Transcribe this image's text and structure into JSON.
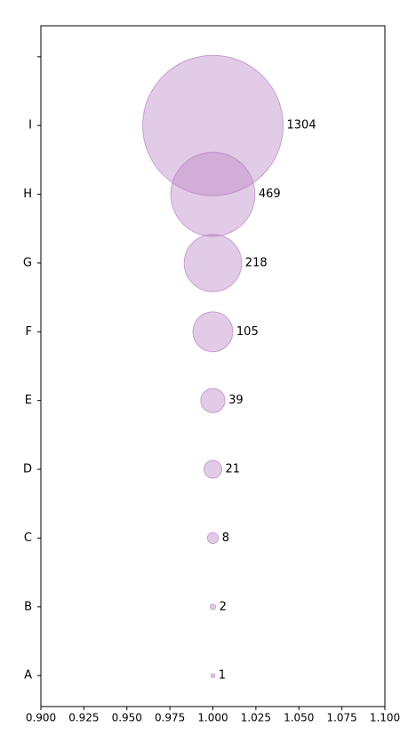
{
  "chart_data": {
    "type": "bubble",
    "yticks": [
      "A",
      "B",
      "C",
      "D",
      "E",
      "F",
      "G",
      "H",
      "I",
      null
    ],
    "y": [
      "A",
      "B",
      "C",
      "D",
      "E",
      "F",
      "G",
      "H",
      "I"
    ],
    "x": [
      1,
      1,
      1,
      1,
      1,
      1,
      1,
      1,
      1
    ],
    "values": [
      1,
      2,
      8,
      21,
      39,
      105,
      218,
      469,
      1304
    ],
    "color": "#b983c4",
    "xlim": [
      0.9,
      1.1
    ],
    "xticks": [
      {
        "value": 0.9,
        "label": "0.900"
      },
      {
        "value": 0.925,
        "label": "0.925"
      },
      {
        "value": 0.95,
        "label": "0.950"
      },
      {
        "value": 0.975,
        "label": "0.975"
      },
      {
        "value": 1.0,
        "label": "1.000"
      },
      {
        "value": 1.025,
        "label": "1.025"
      },
      {
        "value": 1.05,
        "label": "1.050"
      },
      {
        "value": 1.075,
        "label": "1.075"
      },
      {
        "value": 1.1,
        "label": "1.100"
      }
    ]
  }
}
